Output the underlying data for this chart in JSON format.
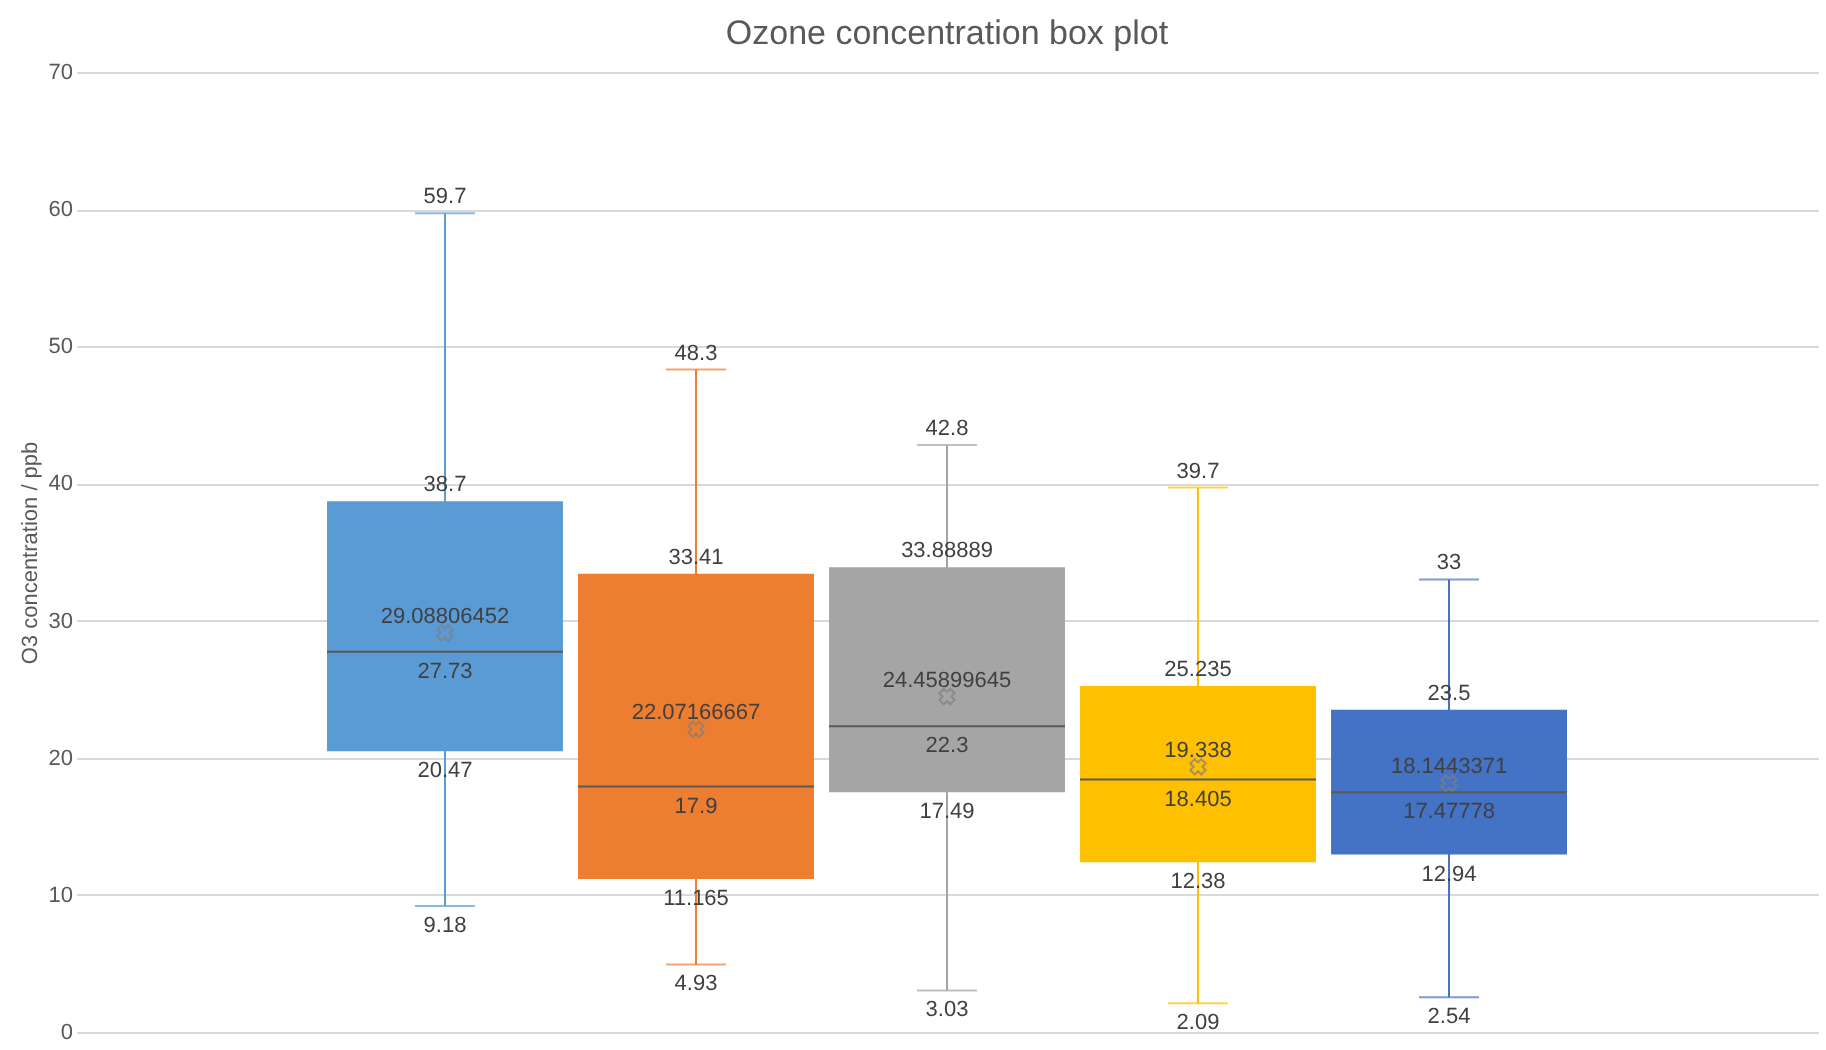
{
  "chart_data": {
    "type": "box",
    "title": "Ozone concentration box plot",
    "ylabel": "O3 concentration / ppb",
    "categories": [
      null
    ],
    "series": [
      {
        "color": "#5b9bd5",
        "boxes": [
          {
            "low": 9.18,
            "q1": 20.47,
            "median": 27.73,
            "q3": 38.7,
            "high": 59.7,
            "mean": 29.08806452
          }
        ]
      },
      {
        "color": "#ed7d31",
        "boxes": [
          {
            "low": 4.93,
            "q1": 11.165,
            "median": 17.9,
            "q3": 33.41,
            "high": 48.3,
            "mean": 22.07166667
          }
        ]
      },
      {
        "color": "#a5a5a5",
        "boxes": [
          {
            "low": 3.03,
            "q1": 17.49,
            "median": 22.3,
            "q3": 33.88889,
            "high": 42.8,
            "mean": 24.45899645
          }
        ]
      },
      {
        "color": "#ffc000",
        "boxes": [
          {
            "low": 2.09,
            "q1": 12.38,
            "median": 18.405,
            "q3": 25.235,
            "high": 39.7,
            "mean": 19.338
          }
        ]
      },
      {
        "color": "#4472c4",
        "boxes": [
          {
            "low": 2.54,
            "q1": 12.94,
            "median": 17.47778,
            "q3": 23.5,
            "high": 33,
            "mean": 18.1443371
          }
        ]
      }
    ],
    "annotations": [
      {
        "text": "59.7",
        "y": 59.7
      },
      {
        "text": "38.7",
        "y": 38.7
      },
      {
        "text": "29.08806452",
        "y": 29.08806452
      },
      {
        "text": "27.73",
        "y": 27.73
      },
      {
        "text": "20.47",
        "y": 20.47
      },
      {
        "text": "9.18",
        "y": 9.18
      },
      {
        "text": "48.3",
        "y": 48.3
      },
      {
        "text": "33.41",
        "y": 33.41
      },
      {
        "text": "22.07166667",
        "y": 22.07166667
      },
      {
        "text": "17.9",
        "y": 17.9
      },
      {
        "text": "11.165",
        "y": 11.165
      },
      {
        "text": "4.93",
        "y": 4.93
      },
      {
        "text": "42.8",
        "y": 42.8
      },
      {
        "text": "33.88889",
        "y": 33.88889
      },
      {
        "text": "24.45899645",
        "y": 24.45899645
      },
      {
        "text": "22.3",
        "y": 22.3
      },
      {
        "text": "17.49",
        "y": 17.49
      },
      {
        "text": "3.03",
        "y": 3.03
      },
      {
        "text": "39.7",
        "y": 39.7
      },
      {
        "text": "25.235",
        "y": 25.235
      },
      {
        "text": "19.338",
        "y": 19.338
      },
      {
        "text": "18.405",
        "y": 18.405
      },
      {
        "text": "12.38",
        "y": 12.38
      },
      {
        "text": "2.09",
        "y": 2.09
      },
      {
        "text": "33",
        "y": 33
      },
      {
        "text": "23.5",
        "y": 23.5
      },
      {
        "text": "18.1443371",
        "y": 18.1443371
      },
      {
        "text": "17.47778",
        "y": 17.47778
      },
      {
        "text": "12.94",
        "y": 12.94
      },
      {
        "text": "2.54",
        "y": 2.54
      }
    ],
    "ylim": [
      0,
      70
    ],
    "yticks": [
      0,
      10,
      20,
      30,
      40,
      50,
      60,
      70
    ],
    "grid": "y"
  }
}
